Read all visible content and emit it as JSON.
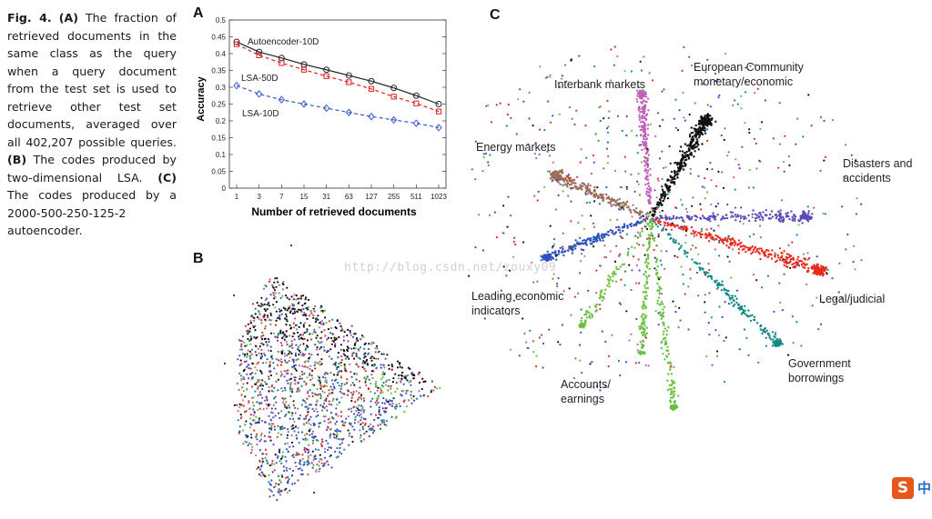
{
  "caption": {
    "fig_label": "Fig. 4.",
    "part_a_letter": "(A)",
    "part_a_text": " The fraction of retrieved documents in the same class as the query when a query document from the test set is used to retrieve other test set documents, averaged over all 402,207 possible queries. ",
    "part_b_letter": "(B)",
    "part_b_text": " The codes produced by two-dimensional LSA. ",
    "part_c_letter": "(C)",
    "part_c_text": " The codes produced by a 2000-500-250-125-2 autoencoder."
  },
  "panel_letters": {
    "a": "A",
    "b": "B",
    "c": "C"
  },
  "chart_data": {
    "type": "line",
    "xlabel": "Number of retrieved documents",
    "ylabel": "Accuracy",
    "categories": [
      "1",
      "3",
      "7",
      "15",
      "31",
      "63",
      "127",
      "255",
      "511",
      "1023"
    ],
    "yticks": [
      "0",
      "0.05",
      "0.1",
      "0.15",
      "0.2",
      "0.25",
      "0.3",
      "0.35",
      "0.4",
      "0.45",
      "0.5"
    ],
    "ylim": [
      0,
      0.5
    ],
    "grid": false,
    "series": [
      {
        "name": "Autoencoder-10D",
        "color": "#222222",
        "marker": "circle",
        "dash": "solid",
        "values": [
          0.435,
          0.405,
          0.387,
          0.368,
          0.352,
          0.335,
          0.318,
          0.298,
          0.275,
          0.25
        ]
      },
      {
        "name": "LSA-50D",
        "color": "#e02020",
        "marker": "square",
        "dash": "dashed",
        "values": [
          0.428,
          0.395,
          0.372,
          0.352,
          0.333,
          0.315,
          0.295,
          0.272,
          0.252,
          0.228
        ]
      },
      {
        "name": "LSA-10D",
        "color": "#3a5bc7",
        "marker": "diamond",
        "dash": "dashed",
        "values": [
          0.305,
          0.28,
          0.263,
          0.25,
          0.238,
          0.225,
          0.213,
          0.203,
          0.193,
          0.18
        ]
      }
    ]
  },
  "panel_c_labels": {
    "interbank": "Interbank markets",
    "european": "European Community\nmonetary/economic",
    "energy": "Energy markets",
    "disasters": "Disasters and\naccidents",
    "leading": "Leading economic\nindicators",
    "legal": "Legal/judicial",
    "accounts": "Accounts/\nearnings",
    "government": "Government\nborrowings"
  },
  "cluster_colors": {
    "interbank": "#c060b8",
    "european": "#111111",
    "energy": "#9c6b5a",
    "disasters": "#5a4ab8",
    "leading": "#3050c0",
    "legal": "#e62a1e",
    "accounts": "#6ac040",
    "government": "#128a86"
  },
  "watermark": "http://blog.csdn.net/zouxy09",
  "corner_logo": {
    "letter": "S",
    "cn": "中"
  }
}
